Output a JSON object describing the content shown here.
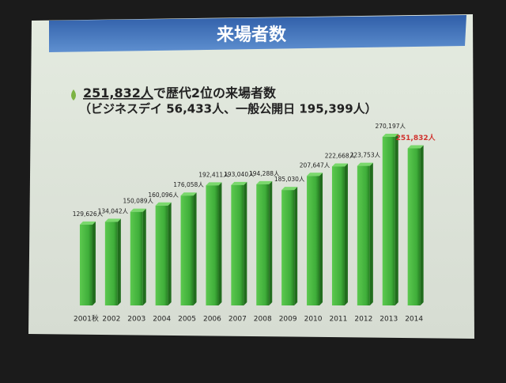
{
  "header": {
    "title": "来場者数"
  },
  "headline": {
    "highlight": "251,832人",
    "rest": "で歴代2位の来場者数",
    "detail": "（ビジネスデイ 56,433人、一般公開日 195,399人）"
  },
  "chart_data": {
    "type": "bar",
    "categories": [
      "2001秋",
      "2002",
      "2003",
      "2004",
      "2005",
      "2006",
      "2007",
      "2008",
      "2009",
      "2010",
      "2011",
      "2012",
      "2013",
      "2014"
    ],
    "values": [
      129626,
      134042,
      150089,
      160096,
      176058,
      192411,
      193040,
      194288,
      185030,
      207647,
      222668,
      223753,
      270197,
      251832
    ],
    "value_labels": [
      "129,626人",
      "134,042人",
      "150,089人",
      "160,096人",
      "176,058人",
      "192,411人",
      "193,040人",
      "194,288人",
      "185,030人",
      "207,647人",
      "222,668人",
      "223,753人",
      "270,197人",
      "251,832人"
    ],
    "color": "#3fae3a",
    "highlight_index": 13,
    "highlight_color": "#d0312d"
  }
}
